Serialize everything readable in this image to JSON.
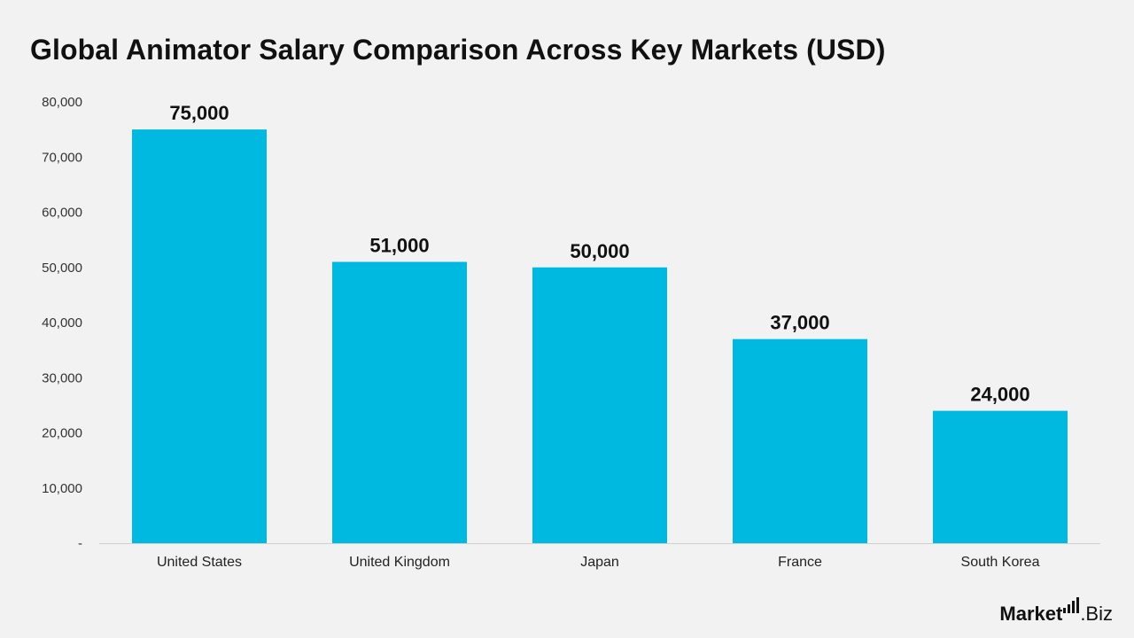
{
  "chart_data": {
    "type": "bar",
    "title": "Global Animator Salary Comparison Across Key Markets (USD)",
    "xlabel": "",
    "ylabel": "",
    "categories": [
      "United States",
      "United Kingdom",
      "Japan",
      "France",
      "South Korea"
    ],
    "values": [
      75000,
      51000,
      50000,
      37000,
      24000
    ],
    "data_labels": [
      "75,000",
      "51,000",
      "50,000",
      "37,000",
      "24,000"
    ],
    "ylim": [
      0,
      80000
    ],
    "yticks": [
      0,
      10000,
      20000,
      30000,
      40000,
      50000,
      60000,
      70000,
      80000
    ],
    "ytick_labels": [
      "-",
      "10,000",
      "20,000",
      "30,000",
      "40,000",
      "50,000",
      "60,000",
      "70,000",
      "80,000"
    ],
    "grid": false,
    "legend": "none",
    "bar_color": "#00b9e0"
  },
  "brand": {
    "text_strong": "Market",
    "text_rest": ".Biz",
    "icon": "bar-chart-icon"
  }
}
